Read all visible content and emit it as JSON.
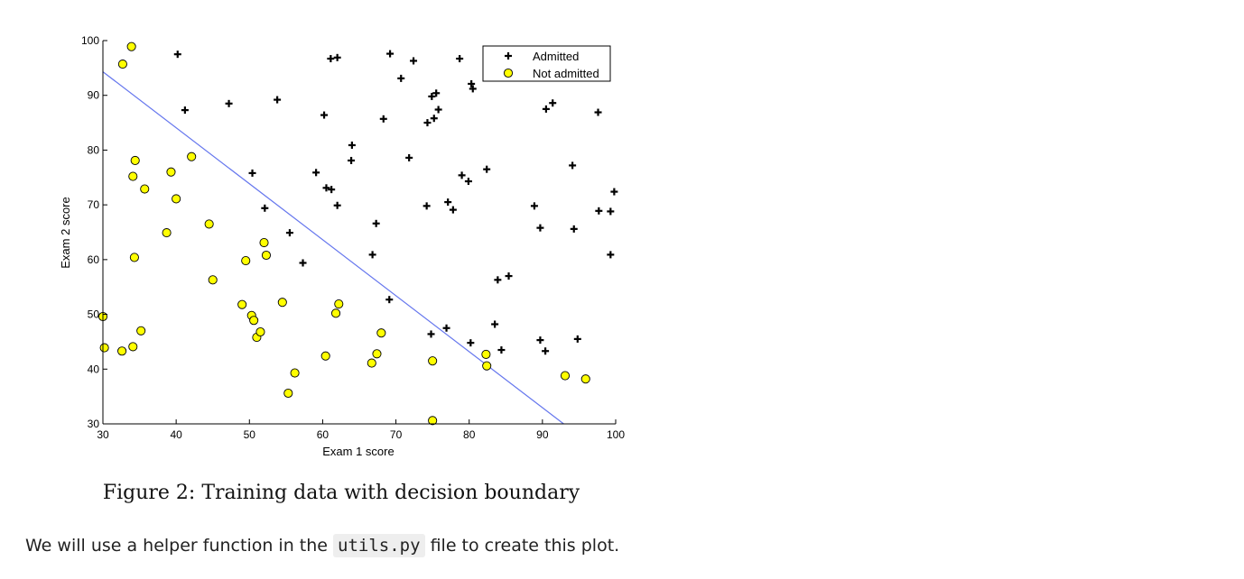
{
  "chart_data": {
    "type": "scatter",
    "xlabel": "Exam 1 score",
    "ylabel": "Exam 2 score",
    "xlim": [
      30,
      100
    ],
    "ylim": [
      30,
      100
    ],
    "xticks": [
      "30",
      "40",
      "50",
      "60",
      "70",
      "80",
      "90",
      "100"
    ],
    "yticks": [
      "30",
      "40",
      "50",
      "60",
      "70",
      "80",
      "90",
      "100"
    ],
    "grid": false,
    "legend_position": "top-right",
    "series": [
      {
        "name": "Admitted",
        "marker": "plus",
        "color": "#000000",
        "points": [
          [
            40.2,
            97.5
          ],
          [
            41.2,
            87.3
          ],
          [
            47.2,
            88.5
          ],
          [
            53.8,
            89.2
          ],
          [
            60.2,
            86.4
          ],
          [
            61.1,
            96.7
          ],
          [
            62.0,
            96.9
          ],
          [
            69.2,
            97.6
          ],
          [
            70.7,
            93.1
          ],
          [
            72.4,
            96.3
          ],
          [
            78.7,
            96.7
          ],
          [
            80.3,
            92.1
          ],
          [
            80.5,
            91.2
          ],
          [
            68.3,
            85.7
          ],
          [
            74.3,
            85.0
          ],
          [
            75.2,
            85.8
          ],
          [
            75.8,
            87.4
          ],
          [
            74.9,
            89.8
          ],
          [
            75.5,
            90.4
          ],
          [
            90.5,
            87.5
          ],
          [
            91.4,
            88.6
          ],
          [
            97.6,
            86.9
          ],
          [
            64.0,
            80.9
          ],
          [
            63.9,
            78.1
          ],
          [
            71.8,
            78.6
          ],
          [
            50.4,
            75.8
          ],
          [
            59.1,
            75.9
          ],
          [
            60.5,
            73.1
          ],
          [
            61.2,
            72.8
          ],
          [
            52.1,
            69.4
          ],
          [
            62.0,
            69.9
          ],
          [
            74.2,
            69.8
          ],
          [
            77.1,
            70.5
          ],
          [
            77.8,
            69.1
          ],
          [
            79.0,
            75.4
          ],
          [
            79.9,
            74.3
          ],
          [
            82.4,
            76.5
          ],
          [
            94.1,
            77.2
          ],
          [
            88.9,
            69.8
          ],
          [
            89.7,
            65.8
          ],
          [
            94.3,
            65.6
          ],
          [
            97.7,
            68.9
          ],
          [
            99.3,
            68.8
          ],
          [
            99.8,
            72.4
          ],
          [
            99.3,
            60.9
          ],
          [
            55.5,
            64.9
          ],
          [
            57.3,
            59.4
          ],
          [
            67.3,
            66.6
          ],
          [
            66.8,
            60.9
          ],
          [
            69.1,
            52.7
          ],
          [
            83.9,
            56.3
          ],
          [
            85.4,
            57.0
          ],
          [
            74.8,
            46.4
          ],
          [
            76.9,
            47.5
          ],
          [
            83.5,
            48.2
          ],
          [
            80.2,
            44.8
          ],
          [
            84.4,
            43.5
          ],
          [
            89.7,
            45.3
          ],
          [
            90.4,
            43.3
          ],
          [
            94.8,
            45.5
          ]
        ]
      },
      {
        "name": "Not admitted",
        "marker": "circle",
        "color": "#ffff00",
        "points": [
          [
            32.7,
            95.7
          ],
          [
            33.9,
            98.9
          ],
          [
            34.4,
            78.1
          ],
          [
            34.1,
            75.2
          ],
          [
            35.7,
            72.9
          ],
          [
            39.3,
            76.0
          ],
          [
            40.0,
            71.1
          ],
          [
            42.1,
            78.8
          ],
          [
            38.7,
            64.9
          ],
          [
            44.5,
            66.5
          ],
          [
            34.3,
            60.4
          ],
          [
            45.0,
            56.3
          ],
          [
            49.5,
            59.8
          ],
          [
            52.0,
            63.1
          ],
          [
            52.3,
            60.8
          ],
          [
            30.0,
            49.6
          ],
          [
            30.2,
            43.9
          ],
          [
            32.6,
            43.3
          ],
          [
            34.1,
            44.1
          ],
          [
            35.2,
            47.0
          ],
          [
            49.0,
            51.8
          ],
          [
            50.3,
            49.8
          ],
          [
            50.6,
            48.9
          ],
          [
            51.0,
            45.8
          ],
          [
            51.5,
            46.8
          ],
          [
            54.5,
            52.2
          ],
          [
            61.8,
            50.2
          ],
          [
            62.2,
            51.9
          ],
          [
            68.0,
            46.6
          ],
          [
            60.4,
            42.4
          ],
          [
            66.7,
            41.1
          ],
          [
            67.4,
            42.8
          ],
          [
            56.2,
            39.3
          ],
          [
            55.3,
            35.6
          ],
          [
            75.0,
            41.5
          ],
          [
            75.0,
            30.6
          ],
          [
            82.3,
            42.7
          ],
          [
            82.4,
            40.6
          ],
          [
            93.1,
            38.8
          ],
          [
            95.9,
            38.2
          ]
        ]
      }
    ],
    "decision_boundary": {
      "color": "#6677ee",
      "points": [
        [
          30.0,
          94.3
        ],
        [
          92.9,
          30.0
        ]
      ]
    },
    "caption": "Figure 2: Training data with decision boundary"
  },
  "paragraph": {
    "before": "We will use a helper function in the ",
    "code": "utils.py",
    "after": " file to create this plot."
  }
}
